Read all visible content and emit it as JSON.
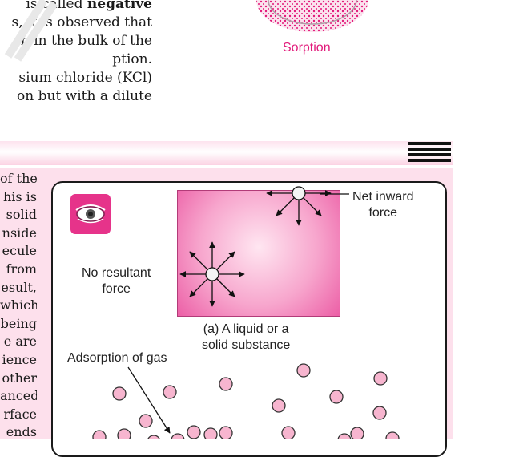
{
  "top_left_text": {
    "lines": [
      "is called negative",
      "s, it is observed that",
      "n in the bulk of the",
      "ption.",
      "sium chloride (KCl)",
      "on but with a dilute"
    ]
  },
  "sorption_figure": {
    "label": "Sorption"
  },
  "left_column_text": {
    "lines": [
      "of the",
      "his is",
      "solid",
      "nside",
      "ecule",
      "from",
      "esult,",
      "which",
      "being",
      "e are",
      "ience",
      "other",
      "anced",
      "rface",
      "ends"
    ]
  },
  "figure": {
    "icon": "eye-icon",
    "net_inward_force_label": "Net inward force",
    "net_inward_line1": "Net inward",
    "net_inward_line2": "force",
    "no_resultant_line1": "No resultant",
    "no_resultant_line2": "force",
    "caption_a_line1": "(a) A liquid or a",
    "caption_a_line2": "solid substance",
    "adsorption_label": "Adsorption of gas"
  },
  "colors": {
    "accent_pink": "#e2197a",
    "panel_pink": "#fde0ec",
    "molecule_fill": "#f7b5cf"
  }
}
